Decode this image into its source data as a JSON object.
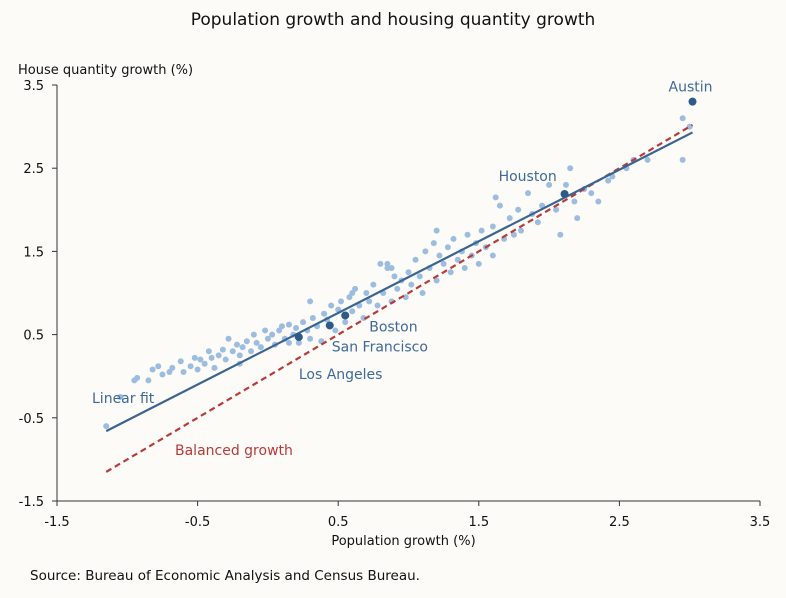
{
  "chart_data": {
    "type": "scatter",
    "title": "Population growth and housing quantity growth",
    "xlabel": "Population growth (%)",
    "ylabel": "House quantity growth (%)",
    "xlim": [
      -1.5,
      3.5
    ],
    "ylim": [
      -1.5,
      3.5
    ],
    "xticks": [
      "-1.5",
      "-0.5",
      "0.5",
      "1.5",
      "2.5",
      "3.5"
    ],
    "yticks": [
      "3.5",
      "2.5",
      "1.5",
      "0.5",
      "-0.5",
      "-1.5"
    ],
    "grid": false,
    "colors": {
      "points": "#9dbde0",
      "highlight": "#2e5a87",
      "fit": "#3a6592",
      "balanced": "#b83a3a",
      "label": "#3e6a9a",
      "balanced_label": "#b83a3a"
    },
    "points": [
      [
        -1.15,
        -0.6
      ],
      [
        -1.05,
        -0.25
      ],
      [
        -0.95,
        -0.05
      ],
      [
        -0.93,
        -0.02
      ],
      [
        -0.85,
        -0.05
      ],
      [
        -0.82,
        0.08
      ],
      [
        -0.78,
        0.12
      ],
      [
        -0.75,
        0.02
      ],
      [
        -0.7,
        0.05
      ],
      [
        -0.68,
        0.1
      ],
      [
        -0.62,
        0.18
      ],
      [
        -0.6,
        0.05
      ],
      [
        -0.55,
        0.12
      ],
      [
        -0.52,
        0.22
      ],
      [
        -0.5,
        0.08
      ],
      [
        -0.48,
        0.2
      ],
      [
        -0.45,
        0.15
      ],
      [
        -0.42,
        0.3
      ],
      [
        -0.4,
        0.22
      ],
      [
        -0.38,
        0.1
      ],
      [
        -0.35,
        0.25
      ],
      [
        -0.32,
        0.32
      ],
      [
        -0.3,
        0.2
      ],
      [
        -0.28,
        0.45
      ],
      [
        -0.25,
        0.3
      ],
      [
        -0.22,
        0.38
      ],
      [
        -0.2,
        0.25
      ],
      [
        -0.18,
        0.35
      ],
      [
        -0.15,
        0.42
      ],
      [
        -0.12,
        0.3
      ],
      [
        -0.1,
        0.5
      ],
      [
        -0.08,
        0.4
      ],
      [
        -0.05,
        0.35
      ],
      [
        -0.02,
        0.55
      ],
      [
        0,
        0.45
      ],
      [
        0.03,
        0.5
      ],
      [
        0.05,
        0.38
      ],
      [
        0.08,
        0.55
      ],
      [
        0.1,
        0.6
      ],
      [
        0.12,
        0.45
      ],
      [
        0.15,
        0.62
      ],
      [
        0.18,
        0.5
      ],
      [
        0.2,
        0.58
      ],
      [
        0.22,
        0.4
      ],
      [
        0.25,
        0.65
      ],
      [
        0.28,
        0.55
      ],
      [
        0.3,
        0.45
      ],
      [
        0.32,
        0.7
      ],
      [
        0.35,
        0.6
      ],
      [
        0.38,
        0.42
      ],
      [
        0.4,
        0.75
      ],
      [
        0.42,
        0.68
      ],
      [
        0.45,
        0.85
      ],
      [
        0.48,
        0.55
      ],
      [
        0.5,
        0.8
      ],
      [
        0.52,
        0.9
      ],
      [
        0.55,
        0.65
      ],
      [
        0.58,
        0.95
      ],
      [
        0.6,
        0.78
      ],
      [
        0.62,
        1.05
      ],
      [
        0.65,
        0.85
      ],
      [
        0.68,
        0.7
      ],
      [
        0.7,
        1.0
      ],
      [
        0.72,
        0.9
      ],
      [
        0.75,
        1.1
      ],
      [
        0.78,
        0.85
      ],
      [
        0.8,
        1.35
      ],
      [
        0.82,
        1.0
      ],
      [
        0.85,
        1.3
      ],
      [
        0.88,
        0.9
      ],
      [
        0.9,
        1.2
      ],
      [
        0.92,
        1.05
      ],
      [
        0.95,
        1.15
      ],
      [
        0.98,
        0.95
      ],
      [
        1.0,
        1.25
      ],
      [
        1.02,
        1.1
      ],
      [
        1.05,
        1.4
      ],
      [
        1.08,
        1.2
      ],
      [
        1.1,
        1.0
      ],
      [
        1.12,
        1.5
      ],
      [
        1.15,
        1.3
      ],
      [
        1.18,
        1.6
      ],
      [
        1.2,
        1.15
      ],
      [
        1.22,
        1.45
      ],
      [
        1.25,
        1.35
      ],
      [
        1.28,
        1.55
      ],
      [
        1.3,
        1.25
      ],
      [
        1.32,
        1.65
      ],
      [
        1.35,
        1.4
      ],
      [
        1.38,
        1.5
      ],
      [
        1.4,
        1.3
      ],
      [
        1.42,
        1.7
      ],
      [
        1.45,
        1.45
      ],
      [
        1.48,
        1.6
      ],
      [
        1.5,
        1.35
      ],
      [
        1.52,
        1.75
      ],
      [
        1.55,
        1.55
      ],
      [
        1.6,
        1.8
      ],
      [
        1.62,
        2.15
      ],
      [
        1.65,
        2.05
      ],
      [
        1.68,
        1.65
      ],
      [
        1.72,
        1.9
      ],
      [
        1.75,
        1.7
      ],
      [
        1.78,
        2.0
      ],
      [
        1.8,
        1.75
      ],
      [
        1.85,
        2.2
      ],
      [
        1.88,
        1.95
      ],
      [
        1.92,
        1.85
      ],
      [
        1.95,
        2.05
      ],
      [
        2.0,
        2.3
      ],
      [
        2.05,
        2.0
      ],
      [
        2.08,
        1.7
      ],
      [
        2.12,
        2.3
      ],
      [
        2.15,
        2.5
      ],
      [
        2.18,
        2.1
      ],
      [
        2.2,
        1.9
      ],
      [
        2.25,
        2.25
      ],
      [
        2.3,
        2.2
      ],
      [
        2.35,
        2.1
      ],
      [
        2.42,
        2.35
      ],
      [
        2.45,
        2.4
      ],
      [
        2.55,
        2.5
      ],
      [
        2.6,
        2.6
      ],
      [
        2.7,
        2.6
      ],
      [
        2.95,
        3.1
      ],
      [
        2.95,
        2.6
      ],
      [
        3.0,
        3.0
      ],
      [
        0.85,
        1.35
      ],
      [
        0.88,
        1.3
      ],
      [
        0.6,
        1.0
      ],
      [
        0.3,
        0.9
      ],
      [
        0.15,
        0.4
      ],
      [
        -0.2,
        0.15
      ],
      [
        1.2,
        1.75
      ],
      [
        1.6,
        1.45
      ]
    ],
    "highlighted": [
      {
        "name": "Austin",
        "x": 3.02,
        "y": 3.3
      },
      {
        "name": "Houston",
        "x": 2.11,
        "y": 2.19
      },
      {
        "name": "Boston",
        "x": 0.55,
        "y": 0.73
      },
      {
        "name": "San Francisco",
        "x": 0.44,
        "y": 0.61
      },
      {
        "name": "Los Angeles",
        "x": 0.22,
        "y": 0.47
      }
    ],
    "lines": [
      {
        "name": "Linear fit",
        "x": [
          -1.15,
          3.02
        ],
        "y": [
          -0.66,
          2.93
        ]
      },
      {
        "name": "Balanced growth",
        "x": [
          -1.15,
          3.02
        ],
        "y": [
          -1.15,
          3.02
        ]
      }
    ]
  },
  "source": "Source: Bureau of Economic Analysis and Census Bureau."
}
